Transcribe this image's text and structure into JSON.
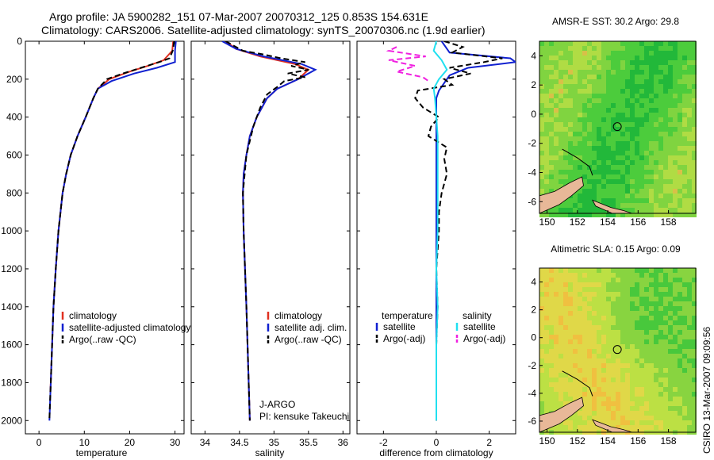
{
  "header": {
    "line1": "Argo profile: JA 5900282_151 07-Mar-2007 20070312_125 0.853S 154.631E",
    "line2": "Climatology: CARS2006. Satellite-adjusted climatology: synTS_20070306.nc (1.9d earlier)"
  },
  "side_label": "CSIRO 13-Mar-2007 09:09:56",
  "colors": {
    "climatology": "#e03020",
    "satellite": "#1020d0",
    "argo": "#000000",
    "salinity_sat": "#20e0f0",
    "salinity_argo": "#f020e0",
    "land": "#e8b898",
    "green_dark": "#22b83a",
    "green_mid": "#5cd43c",
    "yellow_green": "#b8e040",
    "orange": "#f0c040"
  },
  "chart_data": [
    {
      "type": "line",
      "name": "temperature-profile",
      "xlabel": "temperature",
      "ylabel": "",
      "xlim": [
        -3,
        32
      ],
      "ylim": [
        2070,
        0
      ],
      "xticks": [
        0,
        10,
        20,
        30
      ],
      "yticks": [
        0,
        200,
        400,
        600,
        800,
        1000,
        1200,
        1400,
        1600,
        1800,
        2000
      ],
      "legend": [
        "climatology",
        "satellite-adjusted climatology",
        "Argo(..raw -QC)"
      ],
      "series": [
        {
          "name": "climatology",
          "color_key": "climatology",
          "depth": [
            0,
            50,
            100,
            130,
            160,
            200,
            250,
            300,
            400,
            500,
            600,
            700,
            800,
            1000,
            1200,
            1400,
            1600,
            1800,
            1850
          ],
          "values": [
            29.6,
            29.4,
            27.5,
            24.0,
            20.0,
            15.5,
            13.0,
            12.0,
            10.3,
            8.5,
            7.0,
            6.0,
            5.2,
            4.3,
            3.7,
            3.2,
            2.9,
            2.6,
            2.5
          ]
        },
        {
          "name": "satellite-adjusted climatology",
          "color_key": "satellite",
          "depth": [
            0,
            50,
            110,
            140,
            170,
            210,
            250,
            300,
            400,
            500,
            600,
            700,
            800,
            1000,
            1200,
            1400,
            1600,
            1800,
            2000
          ],
          "values": [
            30.2,
            30.0,
            30.0,
            26.0,
            21.0,
            16.0,
            13.0,
            12.0,
            10.3,
            8.5,
            7.0,
            6.0,
            5.2,
            4.3,
            3.7,
            3.2,
            2.9,
            2.6,
            2.3
          ]
        },
        {
          "name": "Argo(..raw -QC)",
          "color_key": "argo",
          "dashed": true,
          "depth": [
            0,
            20,
            50,
            90,
            110,
            140,
            170,
            200,
            250,
            300,
            400,
            500,
            600,
            700,
            800,
            1000,
            1200,
            1400,
            1600,
            1800,
            1990
          ],
          "values": [
            29.8,
            29.7,
            29.5,
            28.8,
            26.5,
            22.5,
            18.5,
            15.0,
            13.0,
            12.0,
            10.3,
            8.5,
            7.0,
            6.0,
            5.2,
            4.3,
            3.7,
            3.2,
            2.9,
            2.6,
            2.3
          ]
        }
      ]
    },
    {
      "type": "line",
      "name": "salinity-profile",
      "xlabel": "salinity",
      "xlim": [
        33.8,
        36.1
      ],
      "ylim": [
        2070,
        0
      ],
      "xticks": [
        34,
        34.5,
        35,
        35.5,
        36
      ],
      "legend": [
        "climatology",
        "satellite adj. clim.",
        "Argo(..raw -QC)"
      ],
      "annotations": [
        "J-ARGO",
        "PI: kensuke Takeuchi"
      ],
      "series": [
        {
          "name": "climatology",
          "color_key": "climatology",
          "depth": [
            0,
            40,
            80,
            120,
            150,
            200,
            250,
            300,
            400,
            500,
            600,
            700,
            800,
            1000,
            1400,
            2000
          ],
          "values": [
            34.3,
            34.45,
            34.8,
            35.3,
            35.5,
            35.35,
            35.05,
            34.9,
            34.75,
            34.65,
            34.6,
            34.56,
            34.55,
            34.56,
            34.6,
            34.65
          ]
        },
        {
          "name": "satellite adj. clim.",
          "color_key": "satellite",
          "depth": [
            0,
            40,
            80,
            120,
            150,
            200,
            250,
            300,
            400,
            500,
            600,
            700,
            800,
            1000,
            1400,
            2000
          ],
          "values": [
            34.25,
            34.45,
            34.85,
            35.4,
            35.6,
            35.35,
            35.05,
            34.9,
            34.75,
            34.65,
            34.6,
            34.56,
            34.55,
            34.56,
            34.6,
            34.65
          ]
        },
        {
          "name": "Argo(..raw -QC)",
          "color_key": "argo",
          "dashed": true,
          "depth": [
            0,
            30,
            50,
            70,
            90,
            110,
            130,
            150,
            170,
            190,
            210,
            240,
            280,
            350,
            450,
            600,
            800,
            1000,
            1400,
            2000
          ],
          "values": [
            34.3,
            34.45,
            34.55,
            34.85,
            35.1,
            35.45,
            35.25,
            35.5,
            35.2,
            35.45,
            35.15,
            35.05,
            34.9,
            34.8,
            34.7,
            34.6,
            34.55,
            34.56,
            34.6,
            34.65
          ]
        }
      ]
    },
    {
      "type": "line",
      "name": "difference-from-climatology",
      "xlabel": "difference from climatology",
      "xlim": [
        -3,
        3
      ],
      "ylim": [
        2070,
        0
      ],
      "xticks": [
        -2,
        0,
        2
      ],
      "legend_temperature": [
        "temperature",
        "satellite",
        "Argo(-adj)"
      ],
      "legend_salinity": [
        "salinity",
        "satellite",
        "Argo(-adj)"
      ],
      "series": [
        {
          "name": "temperature satellite",
          "color_key": "satellite",
          "depth": [
            0,
            60,
            90,
            110,
            140,
            180,
            220,
            260,
            300,
            400,
            600,
            1000,
            2000
          ],
          "values": [
            0.2,
            0.5,
            2.8,
            3.0,
            1.2,
            0.5,
            0.3,
            0.1,
            0.0,
            0.0,
            0.0,
            0.0,
            0.0
          ]
        },
        {
          "name": "temperature Argo(-adj)",
          "color_key": "argo",
          "dashed": true,
          "depth": [
            0,
            30,
            60,
            90,
            110,
            140,
            170,
            200,
            230,
            260,
            300,
            350,
            400,
            450,
            500,
            560,
            620,
            700,
            800,
            900,
            1000,
            1200,
            1400,
            1600,
            2000
          ],
          "values": [
            0.3,
            1.0,
            0.6,
            2.5,
            1.8,
            0.5,
            1.3,
            0.3,
            0.6,
            -0.7,
            -0.8,
            -0.5,
            0.1,
            -0.2,
            -0.3,
            0.4,
            0.3,
            0.4,
            0.2,
            0.1,
            0.1,
            0.0,
            0.05,
            0.0,
            0.0
          ]
        },
        {
          "name": "salinity satellite",
          "color_key": "salinity_sat",
          "depth": [
            0,
            50,
            100,
            150,
            200,
            250,
            300,
            400,
            500,
            600,
            800,
            1000,
            1200,
            1400,
            1600,
            1800,
            2000
          ],
          "values": [
            0.0,
            -0.1,
            0.2,
            0.4,
            0.1,
            -0.1,
            -0.05,
            0.0,
            0.05,
            0.05,
            0.05,
            0.05,
            0.0,
            0.05,
            0.0,
            0.0,
            0.0
          ]
        },
        {
          "name": "salinity Argo(-adj)",
          "color_key": "salinity_argo",
          "dashed": true,
          "depth": [
            30,
            50,
            80,
            100,
            130,
            160,
            190,
            210
          ],
          "values": [
            -1.5,
            -1.8,
            -0.4,
            -1.8,
            -0.8,
            -1.5,
            -0.5,
            -0.3
          ]
        }
      ]
    },
    {
      "type": "heatmap",
      "name": "amsr-e-sst-map",
      "title": "AMSR-E SST: 30.2 Argo: 29.8",
      "xticks": [
        150,
        152,
        154,
        156,
        158
      ],
      "yticks": [
        4,
        2,
        0,
        -2,
        -4,
        -6
      ],
      "xlim": [
        149.5,
        159.8
      ],
      "ylim": [
        -6.8,
        5
      ],
      "marker": {
        "lon": 154.631,
        "lat": -0.853
      }
    },
    {
      "type": "heatmap",
      "name": "altimetric-sla-map",
      "title": "Altimetric SLA: 0.15 Argo: 0.09",
      "xticks": [
        150,
        152,
        154,
        156,
        158
      ],
      "yticks": [
        4,
        2,
        0,
        -2,
        -4,
        -6
      ],
      "xlim": [
        149.5,
        159.8
      ],
      "ylim": [
        -6.8,
        5
      ],
      "marker": {
        "lon": 154.631,
        "lat": -0.853
      }
    }
  ]
}
